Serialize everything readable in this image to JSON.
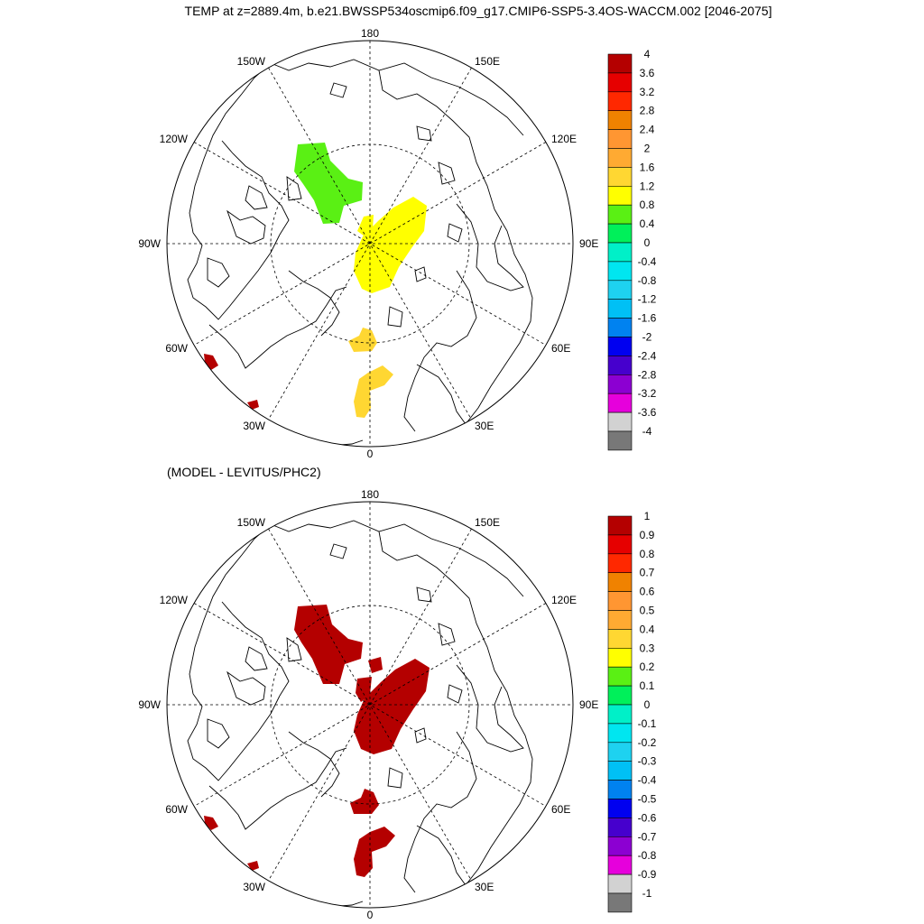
{
  "title": "TEMP at z=2889.4m, b.e21.BWSSP534oscmip6.f09_g17.CMIP6-SSP5-3.4OS-WACCM.002 [2046-2075]",
  "subtitle": "(MODEL - LEVITUS/PHC2)",
  "longitude_labels": {
    "top": "180",
    "bottom": "0",
    "left": "90W",
    "right": "90E",
    "upper_left_a": "150W",
    "upper_right_a": "150E",
    "upper_left_b": "120W",
    "upper_right_b": "120E",
    "lower_left_b": "60W",
    "lower_right_b": "60E",
    "lower_left_a": "30W",
    "lower_right_a": "30E"
  },
  "colors": {
    "fill_top_green": "#5af014",
    "fill_top_yellow": "#ffff00",
    "fill_top_gold": "#ffd732",
    "fill_red": "#b40000",
    "coast": "#000000"
  },
  "maps": [
    {
      "name": "model-temperature",
      "colorbar": {
        "labels": [
          "4",
          "3.6",
          "3.2",
          "2.8",
          "2.4",
          "2",
          "1.6",
          "1.2",
          "0.8",
          "0.4",
          "0",
          "-0.4",
          "-0.8",
          "-1.2",
          "-1.6",
          "-2",
          "-2.4",
          "-2.8",
          "-3.2",
          "-3.6",
          "-4"
        ],
        "colors": [
          "#b40000",
          "#e60000",
          "#ff2800",
          "#f08200",
          "#ff9632",
          "#ffaa32",
          "#ffd732",
          "#ffff00",
          "#5af014",
          "#00f05a",
          "#00f0c8",
          "#00e6f0",
          "#1ed2f0",
          "#00c0f5",
          "#0082f0",
          "#0000f0",
          "#4600cd",
          "#8c00d2",
          "#e600dc",
          "#d2d2d2",
          "#787878"
        ]
      }
    },
    {
      "name": "model-minus-levitus",
      "colorbar": {
        "labels": [
          "1",
          "0.9",
          "0.8",
          "0.7",
          "0.6",
          "0.5",
          "0.4",
          "0.3",
          "0.2",
          "0.1",
          "0",
          "-0.1",
          "-0.2",
          "-0.3",
          "-0.4",
          "-0.5",
          "-0.6",
          "-0.7",
          "-0.8",
          "-0.9",
          "-1"
        ],
        "colors": [
          "#b40000",
          "#e60000",
          "#ff2800",
          "#f08200",
          "#ff9632",
          "#ffaa32",
          "#ffd732",
          "#ffff00",
          "#5af014",
          "#00f05a",
          "#00f0c8",
          "#00e6f0",
          "#1ed2f0",
          "#00c0f5",
          "#0082f0",
          "#0000f0",
          "#4600cd",
          "#8c00d2",
          "#e600dc",
          "#d2d2d2",
          "#787878"
        ]
      }
    }
  ]
}
